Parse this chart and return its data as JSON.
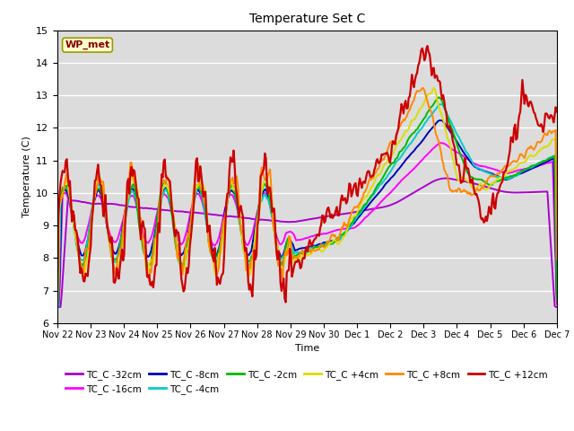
{
  "title": "Temperature Set C",
  "xlabel": "Time",
  "ylabel": "Temperature (C)",
  "ylim": [
    6.0,
    15.0
  ],
  "yticks": [
    6.0,
    7.0,
    8.0,
    9.0,
    10.0,
    11.0,
    12.0,
    13.0,
    14.0,
    15.0
  ],
  "bg_color": "#dcdcdc",
  "series_order": [
    "TC_C -32cm",
    "TC_C -16cm",
    "TC_C -8cm",
    "TC_C -4cm",
    "TC_C -2cm",
    "TC_C +4cm",
    "TC_C +8cm",
    "TC_C +12cm"
  ],
  "series": {
    "TC_C -32cm": {
      "color": "#aa00cc",
      "lw": 1.4
    },
    "TC_C -16cm": {
      "color": "#ff00ff",
      "lw": 1.4
    },
    "TC_C -8cm": {
      "color": "#0000bb",
      "lw": 1.4
    },
    "TC_C -4cm": {
      "color": "#00cccc",
      "lw": 1.4
    },
    "TC_C -2cm": {
      "color": "#00bb00",
      "lw": 1.4
    },
    "TC_C +4cm": {
      "color": "#dddd00",
      "lw": 1.4
    },
    "TC_C +8cm": {
      "color": "#ff8800",
      "lw": 1.4
    },
    "TC_C +12cm": {
      "color": "#cc0000",
      "lw": 1.6
    }
  },
  "xtick_labels": [
    "Nov 22",
    "Nov 23",
    "Nov 24",
    "Nov 25",
    "Nov 26",
    "Nov 27",
    "Nov 28",
    "Nov 29",
    "Nov 30",
    "Dec 1",
    "Dec 2",
    "Dec 3",
    "Dec 4",
    "Dec 5",
    "Dec 6",
    "Dec 7"
  ],
  "wp_met_box": {
    "text": "WP_met",
    "facecolor": "#ffffcc",
    "edgecolor": "#999900",
    "textcolor": "#880000"
  }
}
